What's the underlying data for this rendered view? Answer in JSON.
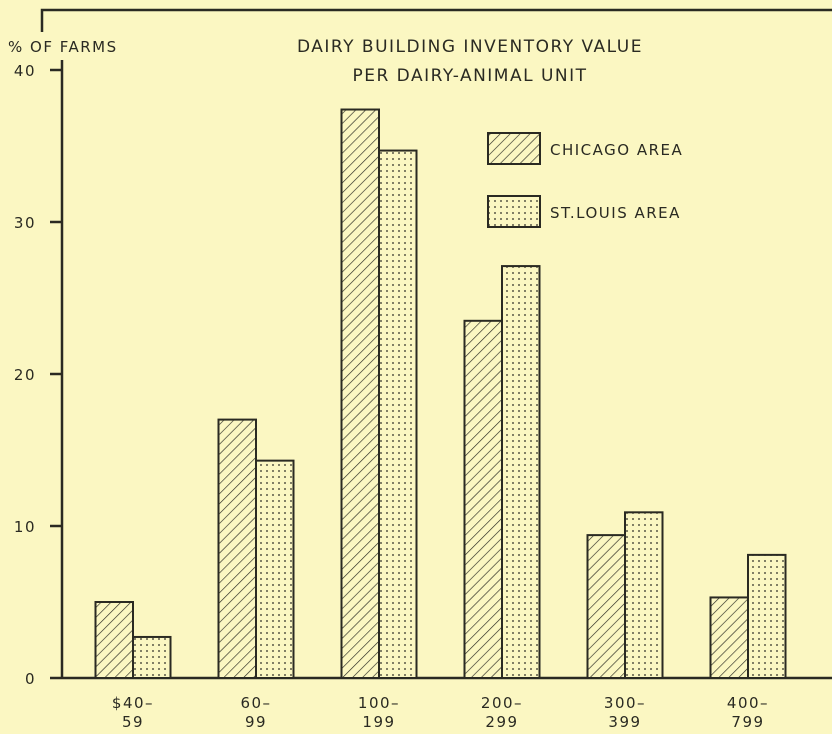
{
  "chart_data": {
    "type": "bar",
    "title": "DAIRY BUILDING INVENTORY VALUE\nPER DAIRY-ANIMAL UNIT",
    "y_label": "% OF FARMS",
    "categories": [
      "$40–\n59",
      "60–\n99",
      "100–\n199",
      "200–\n299",
      "300–\n399",
      "400–\n799"
    ],
    "series": [
      {
        "name": "CHICAGO AREA",
        "color": "#2a2a22",
        "pattern": "hatch",
        "values": [
          5.0,
          17.0,
          37.4,
          23.5,
          9.4,
          5.3
        ]
      },
      {
        "name": "ST.LOUIS AREA",
        "color": "#2a2a22",
        "pattern": "dots",
        "values": [
          2.7,
          14.3,
          34.7,
          27.1,
          10.9,
          8.1
        ]
      }
    ],
    "ylim": [
      0,
      40
    ],
    "yticks": [
      0,
      10,
      20,
      30,
      40
    ],
    "grid": false,
    "legend": "upper right"
  }
}
